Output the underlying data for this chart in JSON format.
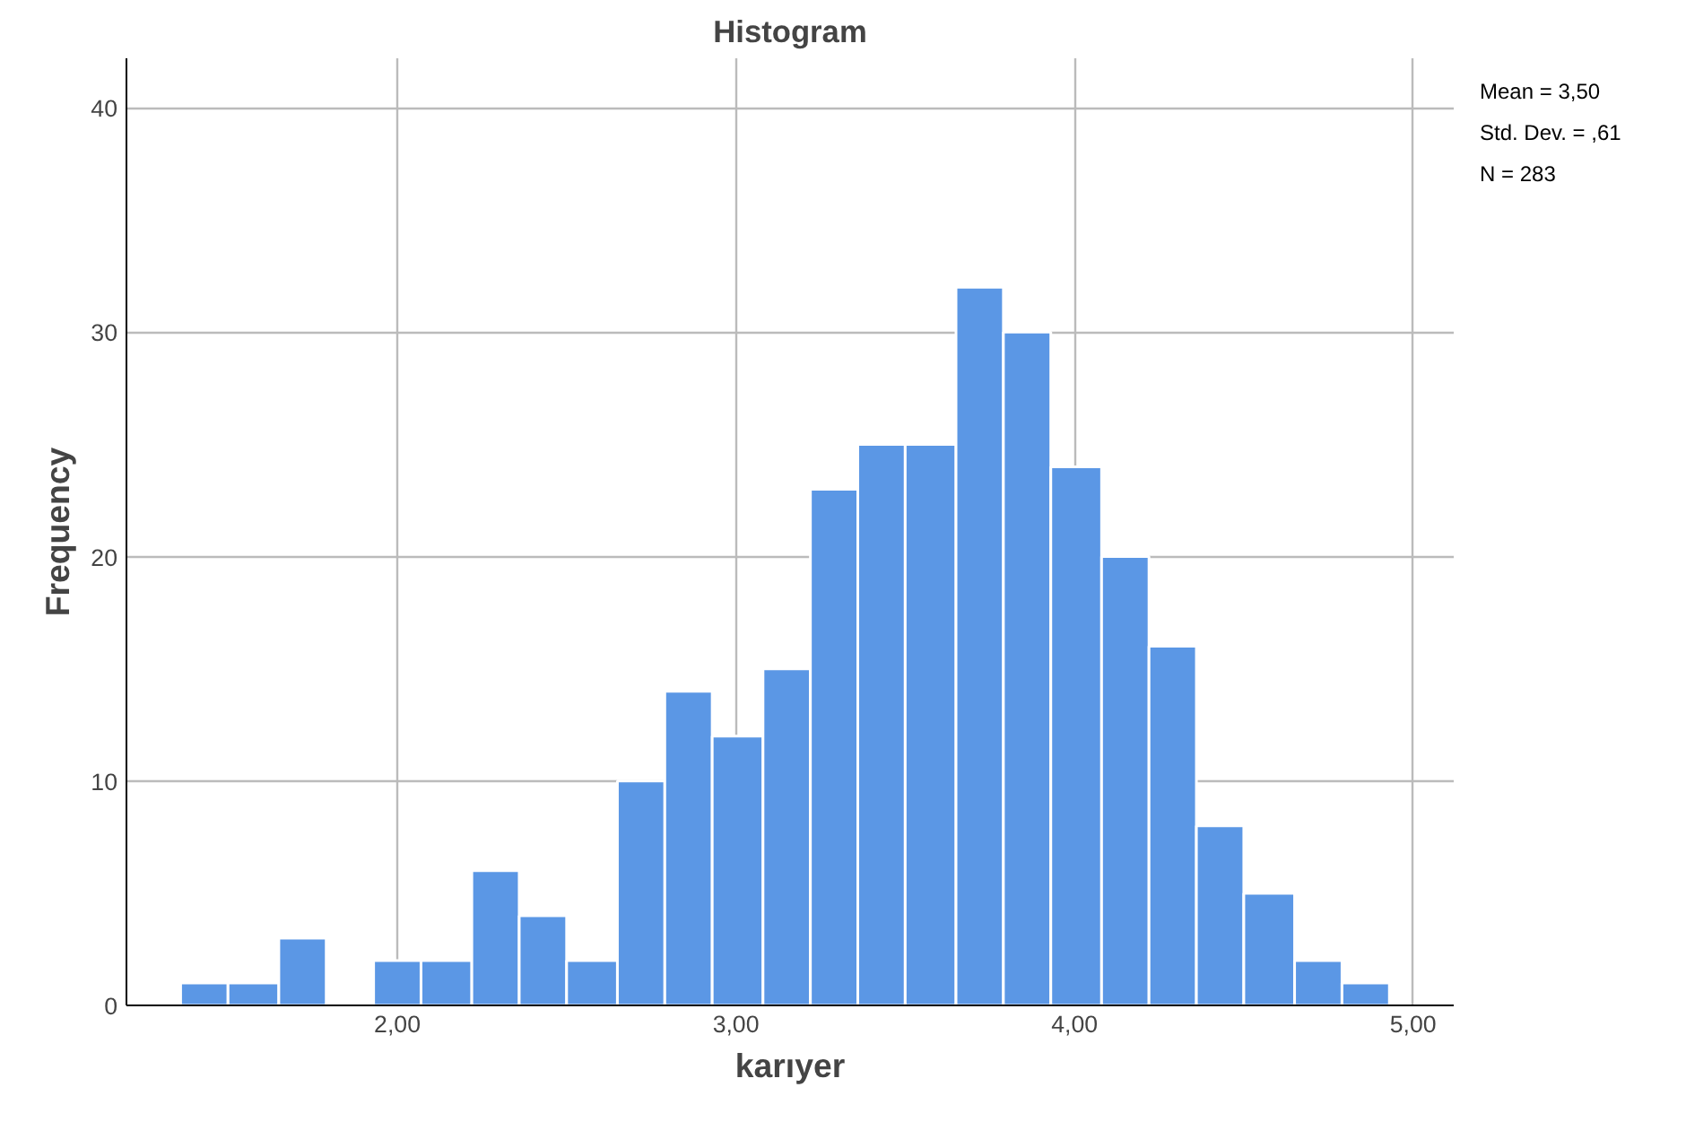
{
  "chart_data": {
    "type": "histogram",
    "title": "Histogram",
    "xlabel": "karıyer",
    "ylabel": "Frequency",
    "bins": [
      1.36,
      1.5,
      1.65,
      1.79,
      1.93,
      2.07,
      2.22,
      2.36,
      2.5,
      2.65,
      2.79,
      2.93,
      3.08,
      3.22,
      3.36,
      3.5,
      3.65,
      3.79,
      3.93,
      4.08,
      4.22,
      4.36,
      4.5,
      4.65,
      4.79,
      4.93
    ],
    "values": [
      1,
      1,
      3,
      0,
      2,
      2,
      6,
      4,
      2,
      10,
      14,
      12,
      15,
      23,
      25,
      25,
      32,
      30,
      24,
      20,
      16,
      8,
      5,
      2,
      1
    ],
    "color": "#5b97e5",
    "xlim": [
      1.2,
      5.12
    ],
    "ylim": [
      0,
      42.2
    ],
    "xticks": [
      {
        "value": 2,
        "label": "2,00"
      },
      {
        "value": 3,
        "label": "3,00"
      },
      {
        "value": 4,
        "label": "4,00"
      },
      {
        "value": 5,
        "label": "5,00"
      }
    ],
    "yticks": [
      0,
      10,
      20,
      30,
      40
    ],
    "grid": true,
    "annotations": [
      "Mean = 3,50",
      "Std. Dev. = ,61",
      "N = 283"
    ]
  }
}
